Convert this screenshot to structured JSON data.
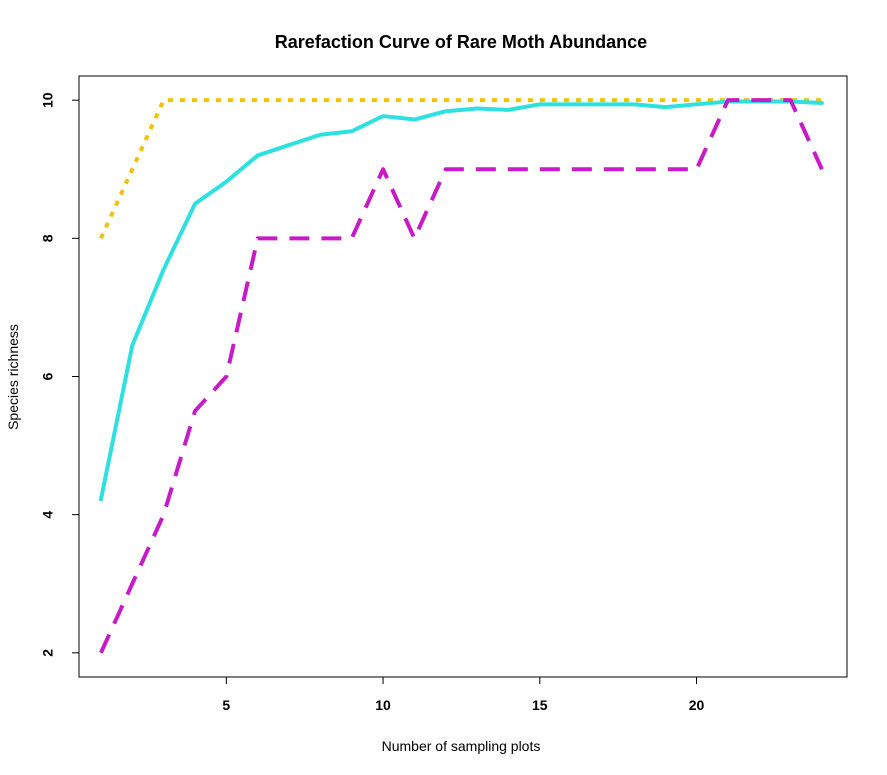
{
  "chart_data": {
    "type": "line",
    "title": "Rarefaction Curve of Rare Moth Abundance",
    "xlabel": "Number of sampling plots",
    "ylabel": "Species richness",
    "xlim": [
      0.3,
      24.8
    ],
    "ylim": [
      1.65,
      10.35
    ],
    "xticks": [
      5,
      10,
      15,
      20
    ],
    "yticks": [
      2,
      4,
      6,
      8,
      10
    ],
    "grid": false,
    "legend": "none",
    "x": [
      1,
      2,
      3,
      4,
      5,
      6,
      7,
      8,
      9,
      10,
      11,
      12,
      13,
      14,
      15,
      16,
      17,
      18,
      19,
      20,
      21,
      22,
      23,
      24
    ],
    "series": [
      {
        "color": "#F0C20C",
        "style": "dotted",
        "values": [
          8,
          9,
          10,
          10,
          10,
          10,
          10,
          10,
          10,
          10,
          10,
          10,
          10,
          10,
          10,
          10,
          10,
          10,
          10,
          10,
          10,
          10,
          10,
          10
        ]
      },
      {
        "color": "#2EE0E0",
        "style": "solid",
        "values": [
          4.22,
          6.45,
          7.55,
          8.5,
          8.82,
          9.2,
          9.35,
          9.5,
          9.55,
          9.77,
          9.72,
          9.84,
          9.88,
          9.86,
          9.94,
          9.94,
          9.94,
          9.94,
          9.9,
          9.94,
          9.98,
          9.98,
          9.98,
          9.96
        ]
      },
      {
        "color": "#C61BC6",
        "style": "dashed",
        "values": [
          2,
          3,
          4,
          5.5,
          6,
          8,
          8,
          8,
          8,
          9,
          8,
          9,
          9,
          9,
          9,
          9,
          9,
          9,
          9,
          9,
          10,
          10,
          10,
          9
        ]
      }
    ]
  }
}
